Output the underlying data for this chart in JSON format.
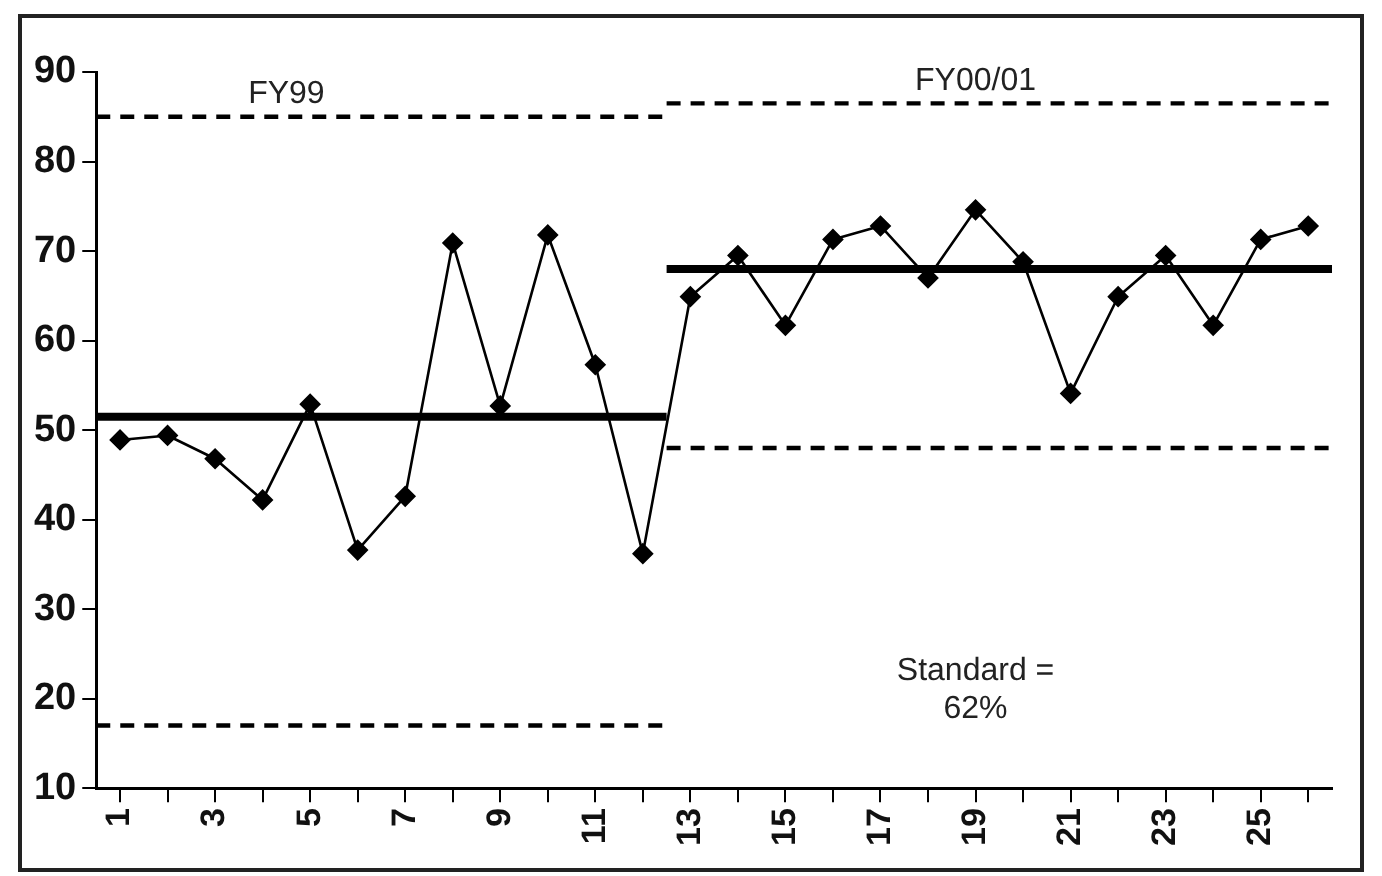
{
  "chart_data": {
    "type": "line",
    "annotations": [
      "FY99",
      "FY00/01",
      "Standard = 62%"
    ],
    "xlim": [
      0.5,
      26.5
    ],
    "xticks": [
      1,
      {
        "value": 2,
        "label": null
      },
      3,
      {
        "value": 4,
        "label": null
      },
      5,
      {
        "value": 6,
        "label": null
      },
      7,
      {
        "value": 8,
        "label": null
      },
      9,
      {
        "value": 10,
        "label": null
      },
      11,
      {
        "value": 12,
        "label": null
      },
      13,
      {
        "value": 14,
        "label": null
      },
      15,
      {
        "value": 16,
        "label": null
      },
      17,
      {
        "value": 18,
        "label": null
      },
      19,
      {
        "value": 20,
        "label": null
      },
      21,
      {
        "value": 22,
        "label": null
      },
      23,
      {
        "value": 24,
        "label": null
      },
      25,
      {
        "value": 26,
        "label": null
      }
    ],
    "ylim": [
      10,
      90
    ],
    "yticks": [
      10,
      20,
      30,
      40,
      50,
      60,
      70,
      80,
      90
    ],
    "grid": false,
    "legend": false,
    "series": [
      {
        "type": "line",
        "color": "#000000",
        "marker": "diamond",
        "line_style": "solid",
        "x": [
          1,
          2,
          3,
          4,
          5,
          6,
          7,
          8,
          9,
          10,
          11,
          12,
          13,
          14,
          15,
          16,
          17,
          18,
          19,
          20,
          21,
          22,
          23,
          24,
          25,
          26
        ],
        "values": [
          48.9,
          49.4,
          46.8,
          42.2,
          52.9,
          36.6,
          42.6,
          70.9,
          52.7,
          71.8,
          57.3,
          36.2,
          64.9,
          69.5,
          61.7,
          71.3,
          72.8,
          67,
          74.6,
          68.8,
          54.1,
          64.9,
          69.5,
          61.7,
          71.3,
          72.8
        ]
      },
      {
        "type": "line",
        "color": "#000000",
        "marker": "none",
        "line_style": "solid",
        "x": [
          0.5,
          12.5
        ],
        "values": [
          51.5,
          51.5
        ]
      },
      {
        "type": "line",
        "color": "#000000",
        "marker": "none",
        "line_style": "dashed",
        "x": [
          0.5,
          12.5
        ],
        "values": [
          85,
          85
        ]
      },
      {
        "type": "line",
        "color": "#000000",
        "marker": "none",
        "line_style": "dashed",
        "x": [
          0.5,
          12.5
        ],
        "values": [
          17,
          17
        ]
      },
      {
        "type": "line",
        "color": "#000000",
        "marker": "none",
        "line_style": "solid",
        "x": [
          12.5,
          26.5
        ],
        "values": [
          68,
          68
        ]
      },
      {
        "type": "line",
        "color": "#000000",
        "marker": "none",
        "line_style": "dashed",
        "x": [
          12.5,
          26.5
        ],
        "values": [
          86.5,
          86.5
        ]
      },
      {
        "type": "line",
        "color": "#000000",
        "marker": "none",
        "line_style": "dashed",
        "x": [
          12.5,
          26.5
        ],
        "values": [
          48,
          48
        ]
      }
    ]
  }
}
